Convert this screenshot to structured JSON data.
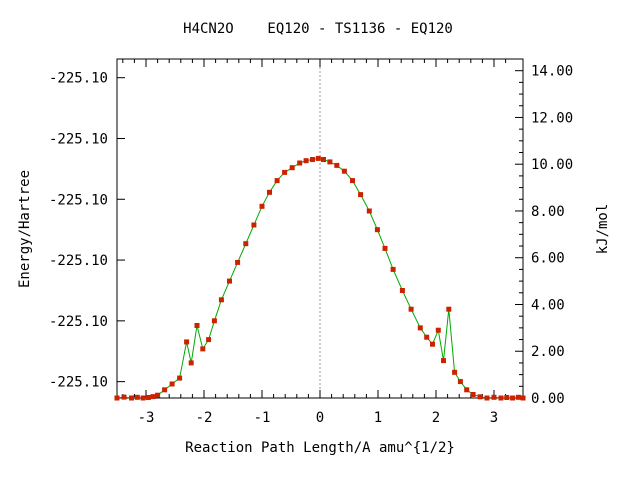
{
  "chart_data": {
    "type": "line",
    "title": "H4CN2O    EQ120 - TS1136 - EQ120",
    "xlabel": "Reaction Path Length/A amu^{1/2}",
    "ylabel_left": "Energy/Hartree",
    "ylabel_right": "kJ/mol",
    "xlim": [
      -3.5,
      3.5
    ],
    "ylim_right": [
      0,
      14.5
    ],
    "x_ticks": [
      -3,
      -2,
      -1,
      0,
      1,
      2,
      3
    ],
    "x_tick_labels": [
      "-3",
      "-2",
      "-1",
      "0",
      "1",
      "2",
      "3"
    ],
    "left_ticks": [
      0.7,
      3.3,
      5.9,
      8.5,
      11.1,
      13.7
    ],
    "left_tick_labels": [
      "-225.10",
      "-225.10",
      "-225.10",
      "-225.10",
      "-225.10",
      "-225.10"
    ],
    "right_ticks": [
      0,
      2,
      4,
      6,
      8,
      10,
      12,
      14
    ],
    "right_tick_labels": [
      "0.00",
      "2.00",
      "4.00",
      "6.00",
      "8.00",
      "10.00",
      "12.00",
      "14.00"
    ],
    "reference_line_x": 0,
    "colors": {
      "line": "#00aa00",
      "marker": "#cc2200",
      "reference": "#999999",
      "axis": "#000000"
    },
    "series": [
      {
        "x": [
          -3.5,
          -3.38,
          -3.25,
          -3.15,
          -3.05,
          -2.96,
          -2.88,
          -2.8,
          -2.68,
          -2.55,
          -2.42,
          -2.3,
          -2.22,
          -2.12,
          -2.02,
          -1.92,
          -1.82,
          -1.7,
          -1.56,
          -1.42,
          -1.28,
          -1.14,
          -1.0,
          -0.87,
          -0.74,
          -0.61,
          -0.48,
          -0.35,
          -0.24,
          -0.13,
          -0.03,
          0.06,
          0.17,
          0.29,
          0.42,
          0.56,
          0.7,
          0.85,
          0.99,
          1.12,
          1.26,
          1.42,
          1.57,
          1.73,
          1.84,
          1.94,
          2.04,
          2.13,
          2.22,
          2.32,
          2.42,
          2.53,
          2.64,
          2.76,
          2.88,
          3.0,
          3.12,
          3.22,
          3.32,
          3.42,
          3.5
        ],
        "y": [
          0.0,
          0.04,
          0.0,
          0.03,
          0.0,
          0.02,
          0.06,
          0.12,
          0.35,
          0.6,
          0.85,
          2.4,
          1.5,
          3.1,
          2.1,
          2.5,
          3.3,
          4.2,
          5.0,
          5.8,
          6.6,
          7.4,
          8.2,
          8.8,
          9.3,
          9.65,
          9.85,
          10.05,
          10.15,
          10.2,
          10.25,
          10.2,
          10.1,
          9.95,
          9.7,
          9.3,
          8.7,
          8.0,
          7.2,
          6.4,
          5.5,
          4.6,
          3.8,
          3.0,
          2.6,
          2.3,
          2.9,
          1.6,
          3.8,
          1.1,
          0.7,
          0.35,
          0.15,
          0.05,
          0.0,
          0.03,
          0.0,
          0.02,
          0.0,
          0.03,
          0.0
        ]
      }
    ]
  }
}
